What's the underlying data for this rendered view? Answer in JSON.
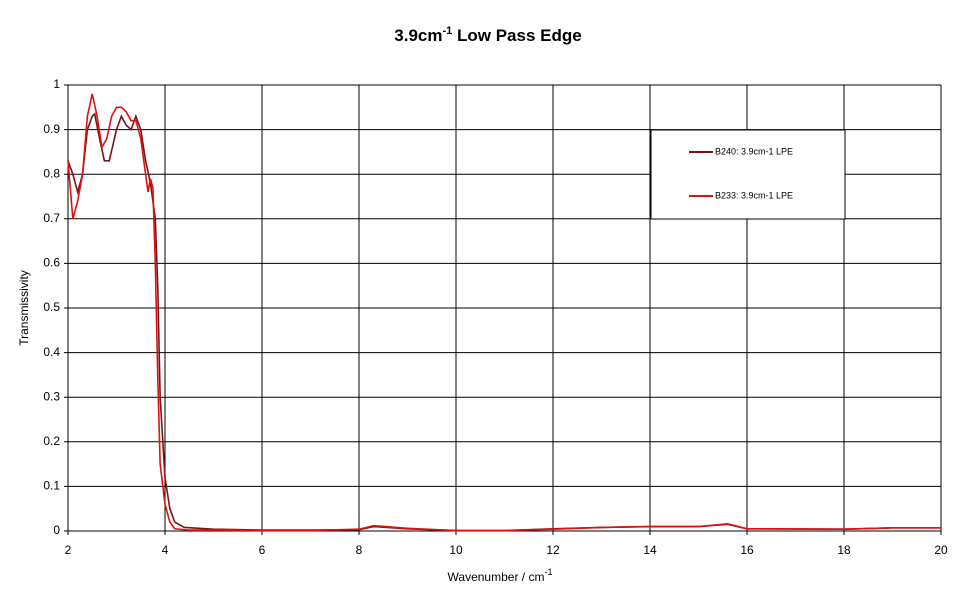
{
  "chart_data": {
    "type": "line",
    "title_parts": [
      "3.9cm",
      "-1",
      " Low Pass Edge"
    ],
    "x_label_parts": [
      "Wavenumber / cm",
      "-1"
    ],
    "y_label": "Transmissivity",
    "xlim": [
      2,
      20
    ],
    "xticks": [
      2,
      4,
      6,
      8,
      10,
      12,
      14,
      16,
      18,
      20
    ],
    "ylim": [
      0,
      1
    ],
    "yticks": [
      0,
      0.1,
      0.2,
      0.3,
      0.4,
      0.5,
      0.6,
      0.7,
      0.8,
      0.9,
      1
    ],
    "grid": true,
    "legend": "upper right",
    "series": [
      {
        "name": "B240: 3.9cm-1 LPE",
        "color": "#7a1414",
        "x": [
          2,
          2.1,
          2.2,
          2.3,
          2.4,
          2.5,
          2.55,
          2.65,
          2.75,
          2.85,
          3.0,
          3.1,
          3.2,
          3.3,
          3.4,
          3.5,
          3.6,
          3.7,
          3.8,
          3.85,
          3.9,
          4.0,
          4.1,
          4.2,
          4.4,
          5,
          6,
          7,
          8,
          8.3,
          9,
          10,
          11,
          12,
          13,
          14,
          15,
          15.6,
          16,
          18,
          19,
          20
        ],
        "values": [
          0.83,
          0.8,
          0.76,
          0.8,
          0.9,
          0.93,
          0.935,
          0.88,
          0.83,
          0.83,
          0.9,
          0.93,
          0.91,
          0.9,
          0.93,
          0.9,
          0.83,
          0.78,
          0.7,
          0.55,
          0.3,
          0.12,
          0.05,
          0.02,
          0.008,
          0.004,
          0.002,
          0.002,
          0.003,
          0.01,
          0.005,
          0.001,
          0.001,
          0.005,
          0.008,
          0.01,
          0.01,
          0.015,
          0.005,
          0.004,
          0.007,
          0.007
        ]
      },
      {
        "name": "B233: 3.9cm-1 LPE",
        "color": "#e01010",
        "x": [
          2,
          2.1,
          2.2,
          2.3,
          2.4,
          2.5,
          2.6,
          2.7,
          2.8,
          2.9,
          3.0,
          3.1,
          3.2,
          3.3,
          3.4,
          3.5,
          3.6,
          3.65,
          3.7,
          3.75,
          3.8,
          3.85,
          3.9,
          4.0,
          4.1,
          4.2,
          4.5,
          5,
          6,
          7,
          8,
          8.3,
          9,
          10,
          11,
          12,
          13,
          14,
          15,
          15.6,
          16,
          18,
          19,
          20
        ],
        "values": [
          0.83,
          0.7,
          0.74,
          0.8,
          0.93,
          0.98,
          0.93,
          0.86,
          0.88,
          0.93,
          0.95,
          0.95,
          0.94,
          0.92,
          0.92,
          0.88,
          0.8,
          0.76,
          0.79,
          0.77,
          0.6,
          0.35,
          0.15,
          0.06,
          0.02,
          0.005,
          0.002,
          0.002,
          0.001,
          0.001,
          0.004,
          0.012,
          0.006,
          0.001,
          0.001,
          0.004,
          0.008,
          0.01,
          0.01,
          0.016,
          0.005,
          0.004,
          0.007,
          0.007
        ]
      }
    ]
  }
}
